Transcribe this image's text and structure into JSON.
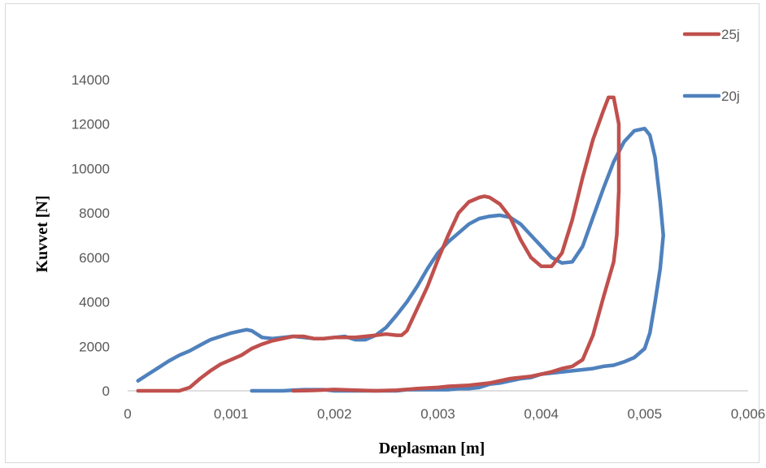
{
  "chart_data": {
    "type": "line",
    "xlabel": "Deplasman [m]",
    "ylabel": "Kuvvet [N]",
    "xlim": [
      0,
      0.006
    ],
    "ylim": [
      0,
      14000
    ],
    "x_tick_labels": [
      "0",
      "0,001",
      "0,002",
      "0,003",
      "0,004",
      "0,005",
      "0,006"
    ],
    "y_tick_labels": [
      "0",
      "2000",
      "4000",
      "6000",
      "8000",
      "10000",
      "12000",
      "14000"
    ],
    "grid": false,
    "legend_position": "top-right",
    "series": [
      {
        "name": "25j",
        "color": "#c0504d",
        "points": [
          [
            0.0001,
            0
          ],
          [
            0.0004,
            0
          ],
          [
            0.0005,
            0
          ],
          [
            0.0006,
            150
          ],
          [
            0.0007,
            550
          ],
          [
            0.0008,
            900
          ],
          [
            0.0009,
            1200
          ],
          [
            0.001,
            1400
          ],
          [
            0.0011,
            1600
          ],
          [
            0.0012,
            1900
          ],
          [
            0.0013,
            2100
          ],
          [
            0.0014,
            2250
          ],
          [
            0.0015,
            2350
          ],
          [
            0.0016,
            2450
          ],
          [
            0.0017,
            2450
          ],
          [
            0.0018,
            2350
          ],
          [
            0.0019,
            2350
          ],
          [
            0.002,
            2400
          ],
          [
            0.0021,
            2400
          ],
          [
            0.0022,
            2400
          ],
          [
            0.0023,
            2450
          ],
          [
            0.0024,
            2500
          ],
          [
            0.0025,
            2550
          ],
          [
            0.0026,
            2500
          ],
          [
            0.00265,
            2500
          ],
          [
            0.0027,
            2700
          ],
          [
            0.0028,
            3700
          ],
          [
            0.0029,
            4700
          ],
          [
            0.003,
            5900
          ],
          [
            0.0031,
            7000
          ],
          [
            0.0032,
            8000
          ],
          [
            0.0033,
            8500
          ],
          [
            0.0034,
            8700
          ],
          [
            0.00345,
            8750
          ],
          [
            0.0035,
            8700
          ],
          [
            0.0036,
            8400
          ],
          [
            0.0037,
            7800
          ],
          [
            0.0038,
            6800
          ],
          [
            0.0039,
            6000
          ],
          [
            0.004,
            5600
          ],
          [
            0.0041,
            5600
          ],
          [
            0.0042,
            6200
          ],
          [
            0.0043,
            7700
          ],
          [
            0.0044,
            9600
          ],
          [
            0.0045,
            11300
          ],
          [
            0.0046,
            12600
          ],
          [
            0.00465,
            13200
          ],
          [
            0.0047,
            13200
          ],
          [
            0.00475,
            12000
          ],
          [
            0.00475,
            9000
          ],
          [
            0.00473,
            7000
          ],
          [
            0.0047,
            5800
          ],
          [
            0.0046,
            4200
          ],
          [
            0.0045,
            2500
          ],
          [
            0.0044,
            1400
          ],
          [
            0.0043,
            1100
          ],
          [
            0.0042,
            1000
          ],
          [
            0.0041,
            850
          ],
          [
            0.004,
            750
          ],
          [
            0.0039,
            650
          ],
          [
            0.0037,
            550
          ],
          [
            0.0035,
            350
          ],
          [
            0.0033,
            250
          ],
          [
            0.0031,
            200
          ],
          [
            0.003,
            150
          ],
          [
            0.0028,
            100
          ],
          [
            0.0026,
            30
          ],
          [
            0.0024,
            0
          ],
          [
            0.0022,
            30
          ],
          [
            0.002,
            60
          ],
          [
            0.0018,
            20
          ],
          [
            0.0016,
            0
          ]
        ]
      },
      {
        "name": "20j",
        "color": "#4f81bd",
        "points": [
          [
            0.0001,
            450
          ],
          [
            0.0002,
            750
          ],
          [
            0.0003,
            1050
          ],
          [
            0.0004,
            1350
          ],
          [
            0.0005,
            1600
          ],
          [
            0.0006,
            1800
          ],
          [
            0.0007,
            2050
          ],
          [
            0.0008,
            2300
          ],
          [
            0.0009,
            2450
          ],
          [
            0.001,
            2600
          ],
          [
            0.0011,
            2700
          ],
          [
            0.00115,
            2750
          ],
          [
            0.0012,
            2700
          ],
          [
            0.0013,
            2400
          ],
          [
            0.0014,
            2350
          ],
          [
            0.0015,
            2400
          ],
          [
            0.0016,
            2450
          ],
          [
            0.0017,
            2400
          ],
          [
            0.0018,
            2350
          ],
          [
            0.0019,
            2350
          ],
          [
            0.002,
            2400
          ],
          [
            0.0021,
            2450
          ],
          [
            0.0022,
            2300
          ],
          [
            0.0023,
            2300
          ],
          [
            0.0024,
            2500
          ],
          [
            0.0025,
            2850
          ],
          [
            0.0026,
            3400
          ],
          [
            0.0027,
            4000
          ],
          [
            0.0028,
            4700
          ],
          [
            0.0029,
            5500
          ],
          [
            0.003,
            6200
          ],
          [
            0.0031,
            6700
          ],
          [
            0.0032,
            7100
          ],
          [
            0.0033,
            7500
          ],
          [
            0.0034,
            7750
          ],
          [
            0.0035,
            7850
          ],
          [
            0.0036,
            7900
          ],
          [
            0.0037,
            7800
          ],
          [
            0.0038,
            7500
          ],
          [
            0.0039,
            7000
          ],
          [
            0.004,
            6500
          ],
          [
            0.0041,
            6000
          ],
          [
            0.0042,
            5750
          ],
          [
            0.0043,
            5800
          ],
          [
            0.0044,
            6500
          ],
          [
            0.0045,
            7800
          ],
          [
            0.0046,
            9100
          ],
          [
            0.0047,
            10300
          ],
          [
            0.0048,
            11200
          ],
          [
            0.0049,
            11700
          ],
          [
            0.005,
            11800
          ],
          [
            0.00505,
            11500
          ],
          [
            0.0051,
            10500
          ],
          [
            0.00515,
            8500
          ],
          [
            0.00518,
            7000
          ],
          [
            0.00515,
            5500
          ],
          [
            0.0051,
            4000
          ],
          [
            0.00505,
            2600
          ],
          [
            0.005,
            1900
          ],
          [
            0.0049,
            1500
          ],
          [
            0.0048,
            1300
          ],
          [
            0.0047,
            1150
          ],
          [
            0.0046,
            1100
          ],
          [
            0.0045,
            1000
          ],
          [
            0.0044,
            950
          ],
          [
            0.0043,
            900
          ],
          [
            0.0042,
            850
          ],
          [
            0.0041,
            800
          ],
          [
            0.004,
            750
          ],
          [
            0.0039,
            600
          ],
          [
            0.0038,
            550
          ],
          [
            0.0037,
            450
          ],
          [
            0.0036,
            350
          ],
          [
            0.0035,
            300
          ],
          [
            0.0034,
            150
          ],
          [
            0.0033,
            100
          ],
          [
            0.0032,
            100
          ],
          [
            0.0031,
            50
          ],
          [
            0.003,
            50
          ],
          [
            0.0029,
            50
          ],
          [
            0.0028,
            50
          ],
          [
            0.0027,
            50
          ],
          [
            0.0026,
            0
          ],
          [
            0.0025,
            0
          ],
          [
            0.0024,
            0
          ],
          [
            0.0023,
            0
          ],
          [
            0.0022,
            0
          ],
          [
            0.0021,
            0
          ],
          [
            0.002,
            0
          ],
          [
            0.0019,
            50
          ],
          [
            0.0018,
            50
          ],
          [
            0.0017,
            50
          ],
          [
            0.0016,
            30
          ],
          [
            0.0015,
            0
          ],
          [
            0.0014,
            0
          ],
          [
            0.0013,
            0
          ],
          [
            0.0012,
            0
          ]
        ]
      }
    ]
  }
}
